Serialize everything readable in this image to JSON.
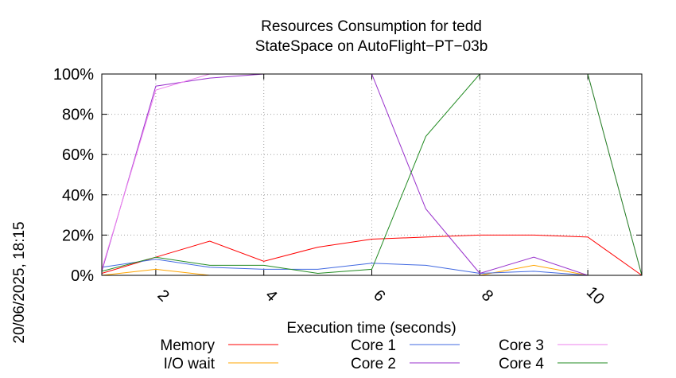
{
  "chart_data": {
    "type": "line",
    "title_line1": "Resources Consumption for tedd",
    "title_line2": "StateSpace on AutoFlight−PT−03b",
    "xlabel": "Execution time (seconds)",
    "side_label": "20/06/2025, 18:15",
    "xlim": [
      1,
      11
    ],
    "ylim": [
      0,
      100
    ],
    "x_ticks": [
      "2",
      "4",
      "6",
      "8",
      "10"
    ],
    "y_ticks": [
      "0%",
      "20%",
      "40%",
      "60%",
      "80%",
      "100%"
    ],
    "grid": true,
    "legend_position": "bottom",
    "x": [
      1,
      2,
      3,
      4,
      5,
      6,
      7,
      8,
      9,
      10,
      11
    ],
    "series": [
      {
        "name": "Memory",
        "color": "#ff0000",
        "values": [
          1,
          9,
          17,
          7,
          14,
          18,
          19,
          20,
          20,
          19,
          0
        ]
      },
      {
        "name": "I/O wait",
        "color": "#ffa500",
        "values": [
          0,
          3,
          0,
          0,
          0,
          0,
          0,
          0,
          5,
          0,
          0
        ]
      },
      {
        "name": "Core 1",
        "color": "#4169e1",
        "values": [
          4,
          8,
          4,
          3,
          3,
          6,
          5,
          1,
          2,
          0,
          0
        ]
      },
      {
        "name": "Core 2",
        "color": "#9932cc",
        "values": [
          2,
          94,
          98,
          100,
          100,
          100,
          33,
          1,
          9,
          0,
          0
        ]
      },
      {
        "name": "Core 3",
        "color": "#ee82ee",
        "values": [
          3,
          92,
          100,
          100,
          100,
          100,
          100,
          100,
          100,
          100,
          0
        ]
      },
      {
        "name": "Core 4",
        "color": "#228b22",
        "values": [
          2,
          9,
          5,
          5,
          1,
          3,
          69,
          100,
          100,
          100,
          0
        ]
      }
    ]
  }
}
